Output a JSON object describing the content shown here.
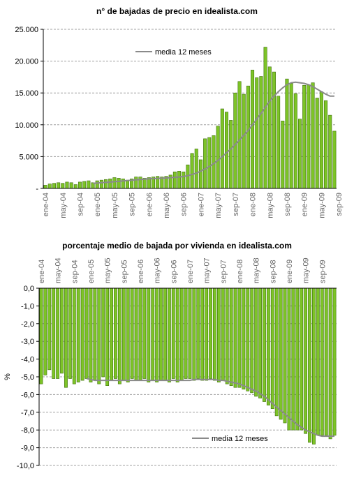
{
  "colors": {
    "bar_fill": "#7dc427",
    "bar_stroke": "#3f6f0e",
    "moving_avg": "#8a8a8a",
    "grid": "#a0a0a0",
    "axis": "#000000",
    "tick_text": "#666666"
  },
  "chart_data": [
    {
      "type": "bar",
      "title": "n° de bajadas de precio en idealista.com",
      "ylabel": "",
      "xlabel": "",
      "ylim": [
        0,
        25000
      ],
      "yticks": [
        0,
        5000,
        10000,
        15000,
        20000,
        25000
      ],
      "ytick_labels": [
        "-",
        "5.000",
        "10.000",
        "15.000",
        "20.000",
        "25.000"
      ],
      "xtick_labels": [
        "ene-04",
        "may-04",
        "sep-04",
        "ene-05",
        "may-05",
        "sep-05",
        "ene-06",
        "may-06",
        "sep-06",
        "ene-07",
        "may-07",
        "sep-07",
        "ene-08",
        "may-08",
        "sep-08",
        "ene-09",
        "may-09",
        "sep-09"
      ],
      "xtick_every": 4,
      "grid": true,
      "legend": "top-left",
      "series": [
        {
          "kind": "bar",
          "values": [
            500,
            700,
            800,
            900,
            800,
            1000,
            900,
            600,
            1000,
            1100,
            1200,
            900,
            1200,
            1300,
            1400,
            1500,
            1700,
            1600,
            1500,
            1300,
            1500,
            1800,
            1800,
            1600,
            1700,
            1800,
            1900,
            1800,
            1900,
            2100,
            2600,
            2700,
            2600,
            3700,
            5500,
            6200,
            4500,
            7800,
            8000,
            8300,
            9800,
            12500,
            12000,
            10700,
            15000,
            16800,
            14800,
            16100,
            18600,
            17400,
            17600,
            22200,
            19100,
            18300,
            14500,
            10600,
            17200,
            16500,
            14900,
            10900,
            16200,
            16300,
            16600,
            14200,
            15200,
            13800,
            11500,
            9000
          ],
          "moving_avg": [
            null,
            null,
            null,
            null,
            null,
            null,
            null,
            null,
            null,
            null,
            null,
            800,
            850,
            900,
            950,
            1000,
            1050,
            1110,
            1180,
            1240,
            1290,
            1340,
            1400,
            1460,
            1510,
            1550,
            1580,
            1610,
            1640,
            1680,
            1740,
            1800,
            1880,
            2000,
            2200,
            2400,
            2700,
            3050,
            3450,
            3900,
            4400,
            5000,
            5600,
            6200,
            6900,
            7600,
            8350,
            9100,
            10000,
            10900,
            11800,
            12750,
            13700,
            14500,
            15200,
            15800,
            16300,
            16600,
            16700,
            16600,
            16500,
            16300,
            16000,
            15600,
            15200,
            14800,
            14500,
            14500
          ]
        },
        {
          "kind": "line",
          "name": "media 12 meses"
        }
      ]
    },
    {
      "type": "bar",
      "title": "porcentaje medio de bajada por vivienda en idealista.com",
      "ylabel": "%",
      "xlabel": "",
      "ylim": [
        -10,
        0
      ],
      "yticks": [
        0,
        -1,
        -2,
        -3,
        -4,
        -5,
        -6,
        -7,
        -8,
        -9,
        -10
      ],
      "ytick_labels": [
        "0,0",
        "-1,0",
        "-2,0",
        "-3,0",
        "-4,0",
        "-5,0",
        "-6,0",
        "-7,0",
        "-8,0",
        "-9,0",
        "-10,0"
      ],
      "xtick_labels": [
        "ene-04",
        "may-04",
        "sep-04",
        "ene-05",
        "may-05",
        "sep-05",
        "ene-06",
        "may-06",
        "sep-06",
        "ene-07",
        "may-07",
        "sep-07",
        "ene-08",
        "may-08",
        "sep-08",
        "ene-09",
        "may-09",
        "sep-09"
      ],
      "xtick_every": 4,
      "grid": true,
      "legend": "bottom-right",
      "series": [
        {
          "kind": "bar",
          "values": [
            -5.4,
            -4.9,
            -4.6,
            -5.1,
            -5.1,
            -4.8,
            -5.6,
            -5.1,
            -5.4,
            -5.3,
            -5.2,
            -5.1,
            -5.3,
            -5.2,
            -5.4,
            -5.0,
            -5.5,
            -5.2,
            -5.1,
            -5.4,
            -5.2,
            -5.3,
            -5.1,
            -5.2,
            -5.2,
            -5.1,
            -5.3,
            -5.2,
            -5.3,
            -5.2,
            -5.2,
            -5.3,
            -5.1,
            -5.3,
            -5.2,
            -5.1,
            -5.1,
            -5.2,
            -5.1,
            -5.2,
            -5.2,
            -5.1,
            -5.2,
            -5.3,
            -5.2,
            -5.4,
            -5.5,
            -5.6,
            -5.6,
            -5.7,
            -5.8,
            -5.9,
            -6.1,
            -6.2,
            -6.4,
            -6.6,
            -6.8,
            -7.2,
            -7.4,
            -7.6,
            -8.0,
            -8.0,
            -8.0,
            -8.0,
            -8.2,
            -8.7,
            -8.8,
            -8.3,
            -8.3,
            -8.3,
            -8.5,
            -8.3
          ],
          "moving_avg": [
            null,
            null,
            null,
            null,
            null,
            null,
            null,
            null,
            null,
            null,
            null,
            -5.1,
            -5.15,
            -5.2,
            -5.2,
            -5.2,
            -5.2,
            -5.2,
            -5.2,
            -5.2,
            -5.2,
            -5.2,
            -5.2,
            -5.2,
            -5.2,
            -5.2,
            -5.2,
            -5.2,
            -5.2,
            -5.2,
            -5.2,
            -5.2,
            -5.2,
            -5.2,
            -5.2,
            -5.2,
            -5.2,
            -5.15,
            -5.15,
            -5.15,
            -5.15,
            -5.15,
            -5.15,
            -5.2,
            -5.2,
            -5.25,
            -5.3,
            -5.35,
            -5.4,
            -5.5,
            -5.6,
            -5.7,
            -5.8,
            -5.95,
            -6.1,
            -6.3,
            -6.5,
            -6.7,
            -6.9,
            -7.1,
            -7.3,
            -7.5,
            -7.7,
            -7.85,
            -8.0,
            -8.1,
            -8.2,
            -8.3,
            -8.35,
            -8.35,
            -8.35,
            -8.35
          ]
        },
        {
          "kind": "line",
          "name": "media 12 meses"
        }
      ]
    }
  ]
}
